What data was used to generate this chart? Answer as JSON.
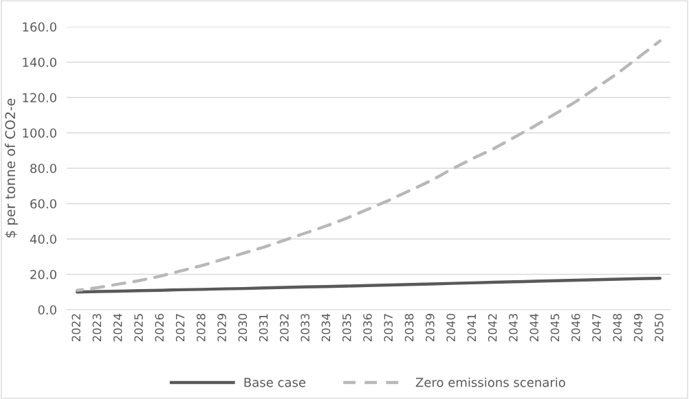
{
  "chart_data": {
    "type": "line",
    "ylabel": "$ per tonne of CO2-e",
    "categories": [
      "2022",
      "2023",
      "2024",
      "2025",
      "2026",
      "2027",
      "2028",
      "2029",
      "2030",
      "2031",
      "2032",
      "2033",
      "2034",
      "2035",
      "2036",
      "2037",
      "2038",
      "2039",
      "2040",
      "2041",
      "2042",
      "2043",
      "2044",
      "2045",
      "2046",
      "2047",
      "2048",
      "2049",
      "2050"
    ],
    "series": [
      {
        "name": "Base case",
        "color": "#595959",
        "line_style": "solid",
        "values": [
          10,
          10.3,
          10.5,
          10.8,
          11.0,
          11.3,
          11.5,
          11.8,
          12.0,
          12.3,
          12.6,
          12.9,
          13.1,
          13.4,
          13.7,
          14.0,
          14.3,
          14.6,
          14.9,
          15.2,
          15.5,
          15.8,
          16.1,
          16.4,
          16.7,
          17.0,
          17.3,
          17.6,
          17.8
        ]
      },
      {
        "name": "Zero emissions scenario",
        "color": "#b8b8b8",
        "line_style": "dashed",
        "values": [
          11,
          12.5,
          14.5,
          16.5,
          19,
          22,
          25,
          28.5,
          32,
          35.5,
          39.5,
          43.5,
          47.5,
          52,
          57,
          62,
          67.5,
          73,
          79.5,
          85.5,
          91,
          97.5,
          104,
          111,
          118,
          126,
          134,
          143,
          152
        ]
      }
    ],
    "ylim": [
      0,
      160
    ],
    "yticks": [
      {
        "value": 0,
        "label": "0.0"
      },
      {
        "value": 20,
        "label": "20.0"
      },
      {
        "value": 40,
        "label": "40.0"
      },
      {
        "value": 60,
        "label": "60.0"
      },
      {
        "value": 80,
        "label": "80.0"
      },
      {
        "value": 100,
        "label": "100.0"
      },
      {
        "value": 120,
        "label": "120.0"
      },
      {
        "value": 140,
        "label": "140.0"
      },
      {
        "value": 160,
        "label": "160.0"
      }
    ],
    "grid": "y",
    "legend": "bottom",
    "marker": "none"
  }
}
